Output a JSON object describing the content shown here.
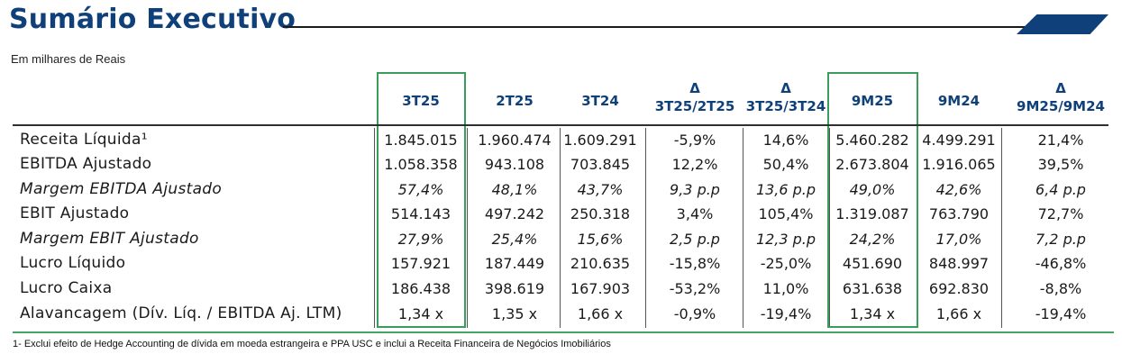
{
  "title": "Sumário Executivo",
  "subtitle": "Em milhares de Reais",
  "colors": {
    "title": "#10407a",
    "highlight_box": "#3a9d5c",
    "accent_tab": "#10407a"
  },
  "columns": [
    {
      "l1": "",
      "l2": "3T25"
    },
    {
      "l1": "",
      "l2": "2T25"
    },
    {
      "l1": "",
      "l2": "3T24"
    },
    {
      "l1": "Δ",
      "l2": "3T25/2T25"
    },
    {
      "l1": "Δ",
      "l2": "3T25/3T24"
    },
    {
      "l1": "",
      "l2": "9M25"
    },
    {
      "l1": "",
      "l2": "9M24"
    },
    {
      "l1": "Δ",
      "l2": "9M25/9M24"
    }
  ],
  "rows": [
    {
      "label": "Receita Líquida¹",
      "values": [
        "1.845.015",
        "1.960.474",
        "1.609.291",
        "-5,9%",
        "14,6%",
        "5.460.282",
        "4.499.291",
        "21,4%"
      ]
    },
    {
      "label": "EBITDA Ajustado",
      "values": [
        "1.058.358",
        "943.108",
        "703.845",
        "12,2%",
        "50,4%",
        "2.673.804",
        "1.916.065",
        "39,5%"
      ]
    },
    {
      "label": "Margem EBITDA Ajustado",
      "values": [
        "57,4%",
        "48,1%",
        "43,7%",
        "9,3 p.p",
        "13,6 p.p",
        "49,0%",
        "42,6%",
        "6,4 p.p"
      ]
    },
    {
      "label": "EBIT Ajustado",
      "values": [
        "514.143",
        "497.242",
        "250.318",
        "3,4%",
        "105,4%",
        "1.319.087",
        "763.790",
        "72,7%"
      ]
    },
    {
      "label": "Margem EBIT Ajustado",
      "values": [
        "27,9%",
        "25,4%",
        "15,6%",
        "2,5 p.p",
        "12,3 p.p",
        "24,2%",
        "17,0%",
        "7,2 p.p"
      ]
    },
    {
      "label": "Lucro Líquido",
      "values": [
        "157.921",
        "187.449",
        "210.635",
        "-15,8%",
        "-25,0%",
        "451.690",
        "848.997",
        "-46,8%"
      ]
    },
    {
      "label": "Lucro Caixa",
      "values": [
        "186.438",
        "398.619",
        "167.903",
        "-53,2%",
        "11,0%",
        "631.638",
        "692.830",
        "-8,8%"
      ]
    },
    {
      "label": "Alavancagem (Dív. Líq. / EBITDA Aj. LTM)",
      "values": [
        "1,34 x",
        "1,35 x",
        "1,66 x",
        "-0,9%",
        "-19,4%",
        "1,34 x",
        "1,66 x",
        "-19,4%"
      ]
    }
  ],
  "footnote": "1- Exclui efeito de Hedge Accounting de dívida em moeda estrangeira e PPA USC e inclui a Receita Financeira de Negócios Imobiliários"
}
